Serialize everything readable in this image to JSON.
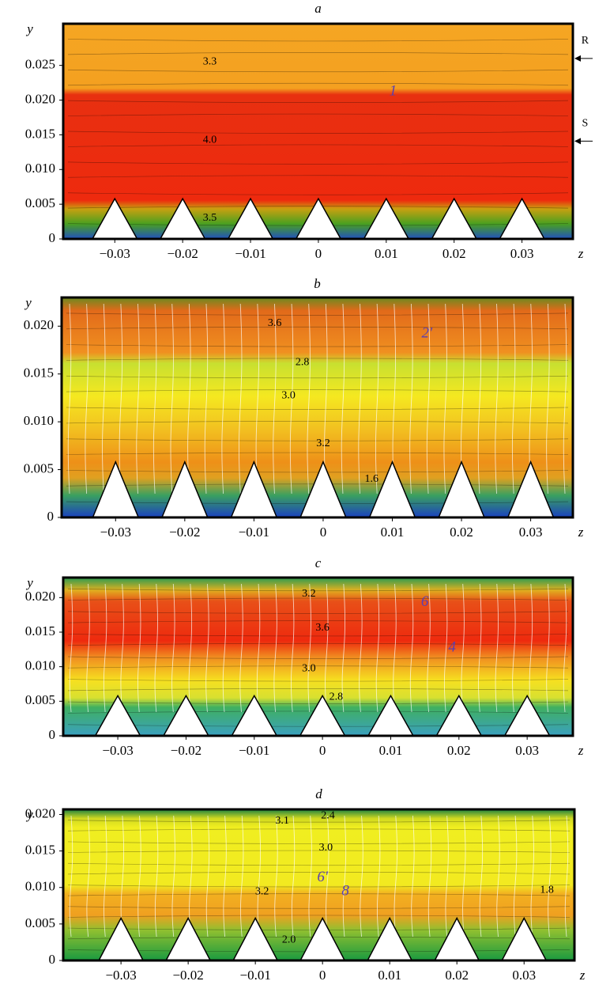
{
  "chart_data": [
    {
      "type": "contour",
      "title": "a",
      "xlabel": "z",
      "ylabel": "y",
      "xlim": [
        -0.0376,
        0.0375
      ],
      "ylim": [
        0,
        0.031
      ],
      "xticks": [
        {
          "value": -0.03,
          "label": "−0.03"
        },
        {
          "value": -0.02,
          "label": "−0.02"
        },
        {
          "value": -0.01,
          "label": "−0.01"
        },
        0,
        0.01,
        0.02,
        0.03
      ],
      "yticks": [
        0,
        0.005,
        {
          "value": 0.01,
          "label": "0.010"
        },
        0.015,
        {
          "value": 0.02,
          "label": "0.020"
        },
        0.025
      ],
      "annotations": [
        {
          "text": "3.3",
          "x": -0.016,
          "y": 0.0255
        },
        {
          "text": "4.0",
          "x": -0.016,
          "y": 0.0142
        },
        {
          "text": "3.5",
          "x": -0.016,
          "y": 0.003
        },
        {
          "text": "1",
          "x": 0.011,
          "y": 0.0212,
          "italic": true,
          "color": "#5a3fb0"
        },
        {
          "text": "R",
          "x": 0.0393,
          "y": 0.0285,
          "arrow": true
        },
        {
          "text": "S",
          "x": 0.0393,
          "y": 0.0166,
          "arrow": true
        }
      ]
    },
    {
      "type": "contour",
      "title": "b",
      "xlabel": "z",
      "ylabel": "y",
      "xlim": [
        -0.0378,
        0.0361
      ],
      "ylim": [
        0,
        0.023
      ],
      "xticks": [
        {
          "value": -0.03,
          "label": "−0.03"
        },
        {
          "value": -0.02,
          "label": "−0.02"
        },
        {
          "value": -0.01,
          "label": "−0.01"
        },
        0,
        0.01,
        0.02,
        0.03
      ],
      "yticks": [
        0,
        0.005,
        {
          "value": 0.01,
          "label": "0.010"
        },
        0.015,
        {
          "value": 0.02,
          "label": "0.020"
        }
      ],
      "annotations": [
        {
          "text": "3.6",
          "x": -0.007,
          "y": 0.0203
        },
        {
          "text": "2'",
          "x": 0.015,
          "y": 0.0192,
          "italic": true,
          "color": "#5a3fb0"
        },
        {
          "text": "2.8",
          "x": -0.003,
          "y": 0.0162
        },
        {
          "text": "3.0",
          "x": -0.005,
          "y": 0.0127
        },
        {
          "text": "3.2",
          "x": 0,
          "y": 0.0077
        },
        {
          "text": "1.6",
          "x": 0.007,
          "y": 0.004
        }
      ]
    },
    {
      "type": "contour",
      "title": "c",
      "xlabel": "z",
      "ylabel": "y",
      "xlim": [
        -0.038,
        0.0367
      ],
      "ylim": [
        0,
        0.0229
      ],
      "xticks": [
        {
          "value": -0.03,
          "label": "−0.03"
        },
        {
          "value": -0.02,
          "label": "−0.02"
        },
        {
          "value": -0.01,
          "label": "−0.01"
        },
        0,
        0.01,
        0.02,
        0.03
      ],
      "yticks": [
        0,
        0.005,
        {
          "value": 0.01,
          "label": "0.010"
        },
        0.015,
        {
          "value": 0.02,
          "label": "0.020"
        }
      ],
      "annotations": [
        {
          "text": "3.2",
          "x": -0.002,
          "y": 0.0205
        },
        {
          "text": "6",
          "x": 0.015,
          "y": 0.0193,
          "italic": true,
          "color": "#5a3fb0"
        },
        {
          "text": "3.6",
          "x": 0,
          "y": 0.0156
        },
        {
          "text": "4",
          "x": 0.019,
          "y": 0.0127,
          "italic": true,
          "color": "#5a3fb0"
        },
        {
          "text": "3.0",
          "x": -0.002,
          "y": 0.0097
        },
        {
          "text": "2.8",
          "x": 0.002,
          "y": 0.0056
        }
      ]
    },
    {
      "type": "contour",
      "title": "d",
      "xlabel": "z",
      "ylabel": "y",
      "xlim": [
        -0.0386,
        0.0375
      ],
      "ylim": [
        0,
        0.0207
      ],
      "xticks": [
        {
          "value": -0.03,
          "label": "−0.03"
        },
        {
          "value": -0.02,
          "label": "−0.02"
        },
        {
          "value": -0.01,
          "label": "−0.01"
        },
        0,
        0.01,
        0.02,
        0.03
      ],
      "yticks": [
        0,
        0.005,
        {
          "value": 0.01,
          "label": "0.010"
        },
        0.015,
        {
          "value": 0.02,
          "label": "0.020"
        }
      ],
      "annotations": [
        {
          "text": "2.4",
          "x": 0.0008,
          "y": 0.0198
        },
        {
          "text": "3.1",
          "x": -0.006,
          "y": 0.0191
        },
        {
          "text": "3.0",
          "x": 0.0005,
          "y": 0.0154
        },
        {
          "text": "6'",
          "x": 0,
          "y": 0.0113,
          "italic": true,
          "color": "#5a3fb0"
        },
        {
          "text": "3.2",
          "x": -0.009,
          "y": 0.0094
        },
        {
          "text": "8",
          "x": 0.0034,
          "y": 0.0094,
          "italic": true,
          "color": "#5a3fb0"
        },
        {
          "text": "1.8",
          "x": 0.0334,
          "y": 0.0096
        },
        {
          "text": "2.0",
          "x": -0.005,
          "y": 0.0028
        }
      ]
    }
  ]
}
